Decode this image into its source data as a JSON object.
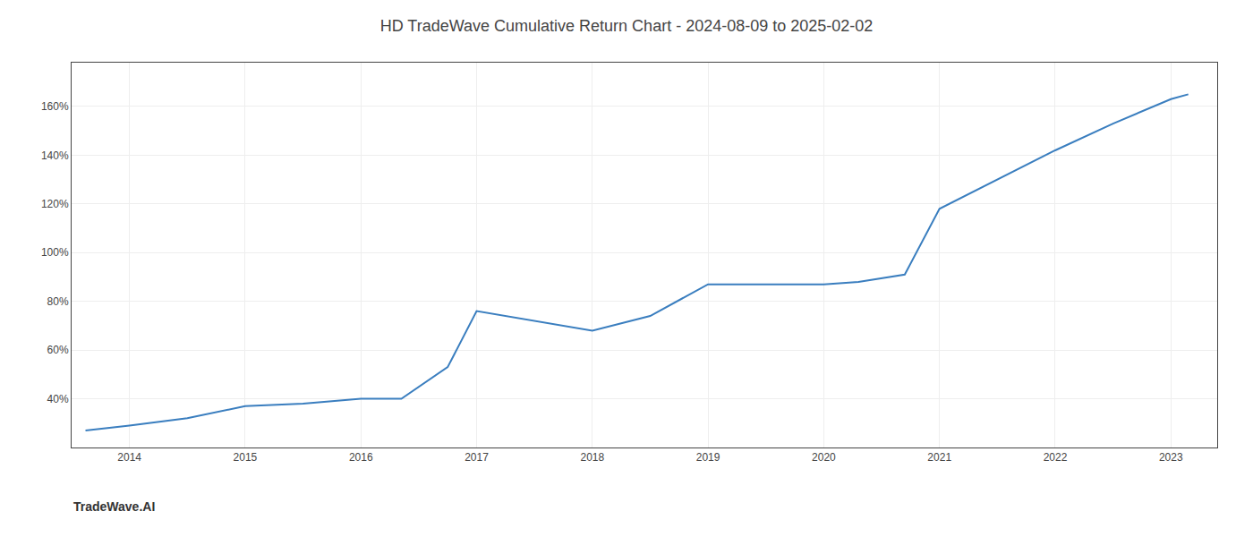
{
  "chart_data": {
    "type": "line",
    "title": "HD TradeWave Cumulative Return Chart - 2024-08-09 to 2025-02-02",
    "x": [
      2013.62,
      2014.0,
      2014.5,
      2015.0,
      2015.5,
      2016.0,
      2016.35,
      2016.75,
      2017.0,
      2017.5,
      2018.0,
      2018.5,
      2019.0,
      2019.4,
      2019.8,
      2020.0,
      2020.3,
      2020.7,
      2021.0,
      2021.5,
      2022.0,
      2022.5,
      2023.0,
      2023.15
    ],
    "values": [
      27,
      29,
      32,
      37,
      38,
      40,
      40,
      53,
      76,
      72,
      68,
      74,
      87,
      87,
      87,
      87,
      88,
      91,
      118,
      130,
      142,
      153,
      163,
      165
    ],
    "color": "#3a7ebf",
    "xlim": [
      2013.5,
      2023.4
    ],
    "ylim": [
      20,
      178
    ],
    "xticks": [
      2014,
      2015,
      2016,
      2017,
      2018,
      2019,
      2020,
      2021,
      2022,
      2023
    ],
    "yticks": [
      {
        "value": 40,
        "label": "40%"
      },
      {
        "value": 60,
        "label": "60%"
      },
      {
        "value": 80,
        "label": "80%"
      },
      {
        "value": 100,
        "label": "100%"
      },
      {
        "value": 120,
        "label": "120%"
      },
      {
        "value": 140,
        "label": "140%"
      },
      {
        "value": 160,
        "label": "160%"
      }
    ],
    "grid": true,
    "annotations": [
      "TradeWave.AI"
    ]
  }
}
